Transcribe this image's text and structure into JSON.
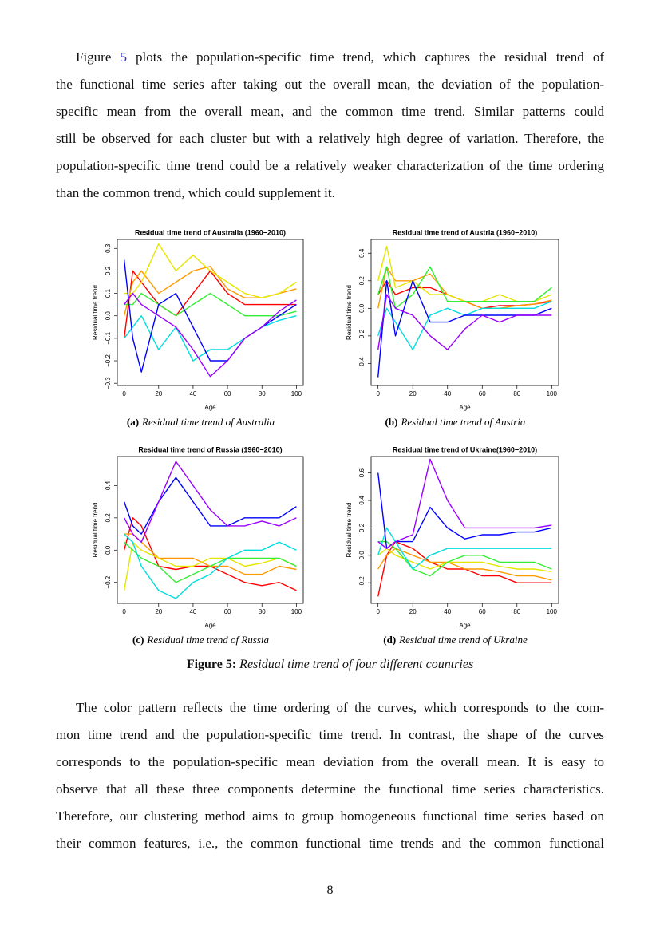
{
  "paragraph1": {
    "lead": "Figure ",
    "ref": "5",
    "first_line_rest": " plots the population-specific time trend, which captures the residual trend of",
    "lines": [
      "the functional time series after taking out the overall mean, the deviation of the population-",
      "specific mean from the overall mean, and the common time trend.  Similar patterns could",
      "still be observed for each cluster but with a relatively high degree of variation. Therefore, the",
      "population-specific time trend could be a relatively weaker characterization of the time ordering",
      "than the common trend, which could supplement it."
    ]
  },
  "chart_data": [
    {
      "type": "line",
      "title": "Residual time trend of Australia (1960−2010)",
      "xlabel": "Age",
      "ylabel": "Residual time trend",
      "caption_label": "(a)",
      "caption": "Residual time trend of Australia",
      "x": [
        0,
        5,
        10,
        20,
        30,
        40,
        50,
        60,
        70,
        80,
        90,
        100
      ],
      "xlim": [
        -4,
        104
      ],
      "xticks": [
        0,
        20,
        40,
        60,
        80,
        100
      ],
      "ylim": [
        -0.31,
        0.34
      ],
      "yticks": [
        {
          "value": -0.3,
          "label": "−0.3"
        },
        {
          "value": -0.2,
          "label": "−0.2"
        },
        {
          "value": -0.1,
          "label": "−0.1"
        },
        {
          "value": 0,
          "label": "0.0"
        },
        0.1,
        0.2,
        0.3
      ],
      "series": [
        {
          "color": "#ff0000",
          "values": [
            -0.1,
            0.2,
            0.15,
            0.05,
            0.0,
            0.1,
            0.2,
            0.1,
            0.05,
            0.05,
            0.05,
            0.05
          ]
        },
        {
          "color": "#ff9900",
          "values": [
            0.0,
            0.15,
            0.2,
            0.1,
            0.15,
            0.2,
            0.22,
            0.12,
            0.08,
            0.08,
            0.1,
            0.12
          ]
        },
        {
          "color": "#e6e600",
          "values": [
            0.1,
            0.1,
            0.15,
            0.32,
            0.2,
            0.27,
            0.2,
            0.15,
            0.1,
            0.08,
            0.1,
            0.15
          ]
        },
        {
          "color": "#33ee33",
          "values": [
            0.05,
            0.05,
            0.1,
            0.05,
            0.0,
            0.05,
            0.1,
            0.05,
            0.0,
            0.0,
            0.0,
            0.02
          ]
        },
        {
          "color": "#00dddd",
          "values": [
            -0.1,
            -0.05,
            0.0,
            -0.15,
            -0.05,
            -0.2,
            -0.15,
            -0.15,
            -0.1,
            -0.05,
            -0.02,
            0.0
          ]
        },
        {
          "color": "#0000ff",
          "values": [
            0.25,
            -0.1,
            -0.25,
            0.05,
            0.1,
            -0.05,
            -0.2,
            -0.2,
            -0.1,
            -0.05,
            0.0,
            0.05
          ]
        },
        {
          "color": "#9900ff",
          "values": [
            0.05,
            0.1,
            0.05,
            0.0,
            -0.05,
            -0.15,
            -0.27,
            -0.2,
            -0.1,
            -0.05,
            0.02,
            0.07
          ]
        }
      ]
    },
    {
      "type": "line",
      "title": "Residual time trend of Austria (1960−2010)",
      "xlabel": "Age",
      "ylabel": "Residual time trend",
      "caption_label": "(b)",
      "caption": "Residual time trend of Austria",
      "x": [
        0,
        5,
        10,
        20,
        30,
        40,
        50,
        60,
        70,
        80,
        90,
        100
      ],
      "xlim": [
        -4,
        104
      ],
      "xticks": [
        0,
        20,
        40,
        60,
        80,
        100
      ],
      "ylim": [
        -0.56,
        0.5
      ],
      "yticks": [
        {
          "value": -0.4,
          "label": "−0.4"
        },
        {
          "value": -0.2,
          "label": "−0.2"
        },
        {
          "value": 0,
          "label": "0.0"
        },
        0.2,
        0.4
      ],
      "series": [
        {
          "color": "#ff0000",
          "values": [
            0.1,
            0.2,
            0.1,
            0.15,
            0.15,
            0.1,
            0.05,
            0.0,
            0.02,
            0.02,
            0.03,
            0.05
          ]
        },
        {
          "color": "#ff9900",
          "values": [
            0.0,
            0.3,
            0.2,
            0.2,
            0.25,
            0.1,
            0.05,
            0.0,
            0.0,
            0.02,
            0.03,
            0.06
          ]
        },
        {
          "color": "#e6e600",
          "values": [
            0.2,
            0.45,
            0.15,
            0.2,
            0.1,
            0.1,
            0.05,
            0.05,
            0.1,
            0.05,
            0.05,
            0.1
          ]
        },
        {
          "color": "#33ee33",
          "values": [
            0.1,
            0.3,
            0.0,
            0.1,
            0.3,
            0.05,
            0.05,
            0.05,
            0.05,
            0.05,
            0.05,
            0.15
          ]
        },
        {
          "color": "#00dddd",
          "values": [
            -0.2,
            0.0,
            -0.1,
            -0.3,
            -0.05,
            0.0,
            -0.05,
            0.0,
            0.0,
            0.0,
            0.0,
            0.05
          ]
        },
        {
          "color": "#0000ff",
          "values": [
            -0.5,
            0.2,
            -0.2,
            0.2,
            -0.1,
            -0.1,
            -0.05,
            -0.05,
            -0.05,
            -0.05,
            -0.05,
            0.0
          ]
        },
        {
          "color": "#9900ff",
          "values": [
            -0.3,
            0.1,
            0.0,
            -0.05,
            -0.2,
            -0.3,
            -0.15,
            -0.05,
            -0.1,
            -0.05,
            -0.05,
            -0.05
          ]
        }
      ]
    },
    {
      "type": "line",
      "title": "Residual time trend of Russia (1960−2010)",
      "xlabel": "Age",
      "ylabel": "Residual time trend",
      "caption_label": "(c)",
      "caption": "Residual time trend of Russia",
      "x": [
        0,
        5,
        10,
        20,
        30,
        40,
        50,
        60,
        70,
        80,
        90,
        100
      ],
      "xlim": [
        -4,
        104
      ],
      "xticks": [
        0,
        20,
        40,
        60,
        80,
        100
      ],
      "ylim": [
        -0.33,
        0.58
      ],
      "yticks": [
        {
          "value": -0.2,
          "label": "−0.2"
        },
        {
          "value": 0,
          "label": "0.0"
        },
        0.2,
        0.4
      ],
      "series": [
        {
          "color": "#ff0000",
          "values": [
            0.0,
            0.2,
            0.15,
            -0.1,
            -0.12,
            -0.1,
            -0.1,
            -0.15,
            -0.2,
            -0.22,
            -0.2,
            -0.25
          ]
        },
        {
          "color": "#ff9900",
          "values": [
            0.1,
            0.1,
            0.05,
            -0.05,
            -0.05,
            -0.05,
            -0.1,
            -0.1,
            -0.15,
            -0.15,
            -0.1,
            -0.12
          ]
        },
        {
          "color": "#e6e600",
          "values": [
            -0.25,
            0.05,
            0.0,
            -0.05,
            -0.1,
            -0.1,
            -0.05,
            -0.05,
            -0.1,
            -0.08,
            -0.05,
            -0.1
          ]
        },
        {
          "color": "#33ee33",
          "values": [
            0.05,
            0.0,
            -0.05,
            -0.1,
            -0.2,
            -0.15,
            -0.1,
            -0.05,
            -0.05,
            -0.05,
            -0.05,
            -0.1
          ]
        },
        {
          "color": "#00dddd",
          "values": [
            0.1,
            0.05,
            -0.1,
            -0.25,
            -0.3,
            -0.2,
            -0.15,
            -0.05,
            0.0,
            0.0,
            0.05,
            0.0
          ]
        },
        {
          "color": "#0000ff",
          "values": [
            0.3,
            0.15,
            0.1,
            0.3,
            0.45,
            0.3,
            0.15,
            0.15,
            0.2,
            0.2,
            0.2,
            0.27
          ]
        },
        {
          "color": "#9900ff",
          "values": [
            0.2,
            0.1,
            0.05,
            0.3,
            0.55,
            0.4,
            0.25,
            0.15,
            0.15,
            0.18,
            0.15,
            0.2
          ]
        }
      ]
    },
    {
      "type": "line",
      "title": "Residual time trend of Ukraine(1960−2010)",
      "xlabel": "Age",
      "ylabel": "Residual time trend",
      "caption_label": "(d)",
      "caption": "Residual time trend of Ukraine",
      "x": [
        0,
        5,
        10,
        20,
        30,
        40,
        50,
        60,
        70,
        80,
        90,
        100
      ],
      "xlim": [
        -4,
        104
      ],
      "xticks": [
        0,
        20,
        40,
        60,
        80,
        100
      ],
      "ylim": [
        -0.35,
        0.72
      ],
      "yticks": [
        {
          "value": -0.2,
          "label": "−0.2"
        },
        {
          "value": 0,
          "label": "0.0"
        },
        0.2,
        0.4,
        0.6
      ],
      "series": [
        {
          "color": "#ff0000",
          "values": [
            -0.3,
            0.0,
            0.1,
            0.05,
            -0.05,
            -0.1,
            -0.1,
            -0.15,
            -0.15,
            -0.2,
            -0.2,
            -0.2
          ]
        },
        {
          "color": "#ff9900",
          "values": [
            -0.1,
            0.0,
            0.05,
            0.0,
            -0.05,
            -0.05,
            -0.1,
            -0.1,
            -0.12,
            -0.15,
            -0.15,
            -0.18
          ]
        },
        {
          "color": "#e6e600",
          "values": [
            0.0,
            0.05,
            0.0,
            -0.05,
            -0.1,
            -0.05,
            -0.05,
            -0.05,
            -0.08,
            -0.1,
            -0.1,
            -0.12
          ]
        },
        {
          "color": "#33ee33",
          "values": [
            0.1,
            0.1,
            0.05,
            -0.1,
            -0.15,
            -0.05,
            0.0,
            0.0,
            -0.05,
            -0.05,
            -0.05,
            -0.1
          ]
        },
        {
          "color": "#00dddd",
          "values": [
            0.0,
            0.2,
            0.1,
            -0.1,
            0.0,
            0.05,
            0.05,
            0.05,
            0.05,
            0.05,
            0.05,
            0.05
          ]
        },
        {
          "color": "#0000ff",
          "values": [
            0.6,
            0.05,
            0.1,
            0.1,
            0.35,
            0.2,
            0.12,
            0.15,
            0.15,
            0.17,
            0.17,
            0.2
          ]
        },
        {
          "color": "#9900ff",
          "values": [
            0.1,
            0.05,
            0.1,
            0.15,
            0.7,
            0.4,
            0.2,
            0.2,
            0.2,
            0.2,
            0.2,
            0.22
          ]
        }
      ]
    }
  ],
  "figure_caption": {
    "label": "Figure 5:",
    "text": "Residual time trend of four different countries"
  },
  "paragraph2": {
    "lines": [
      "The color pattern reflects the time ordering of the curves, which corresponds to the com-",
      "mon time trend and the population-specific time trend.  In contrast, the shape of the curves",
      "corresponds to the population-specific mean deviation from the overall mean.  It is easy to",
      "observe that all these three components determine the functional time series characteristics.",
      "Therefore, our clustering method aims to group homogeneous functional time series based on",
      "their common features, i.e., the common functional time trends and the common functional"
    ]
  },
  "page_number": "8"
}
